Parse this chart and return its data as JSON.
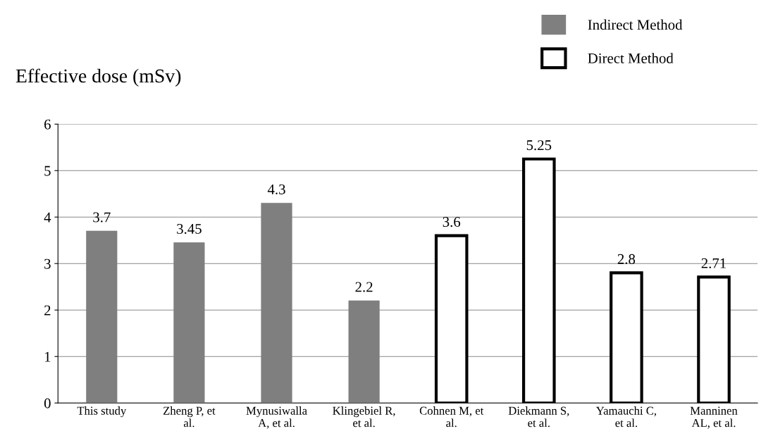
{
  "chart_data": {
    "type": "bar",
    "ylabel": "Effective dose (mSv)",
    "categories": [
      "This study",
      "Zheng P, et\nal.",
      "Mynusiwalla\nA, et al.",
      "Klingebiel R,\net al.",
      "Cohnen M, et\nal.",
      "Diekmann S,\net al.",
      "Yamauchi C,\net al.",
      "Manninen\nAL, et al."
    ],
    "series": [
      {
        "name": "Indirect Method",
        "color": "#7f7f7f",
        "values": [
          3.7,
          3.45,
          4.3,
          2.2,
          null,
          null,
          null,
          null
        ]
      },
      {
        "name": "Direct Method",
        "color": "#ffffff",
        "values": [
          null,
          null,
          null,
          null,
          3.6,
          5.25,
          2.8,
          2.71
        ]
      }
    ],
    "ylim": [
      0,
      6
    ],
    "yticks": [
      0,
      1,
      2,
      3,
      4,
      5,
      6
    ],
    "grid": "y",
    "legend": "top right",
    "data_labels": true
  }
}
